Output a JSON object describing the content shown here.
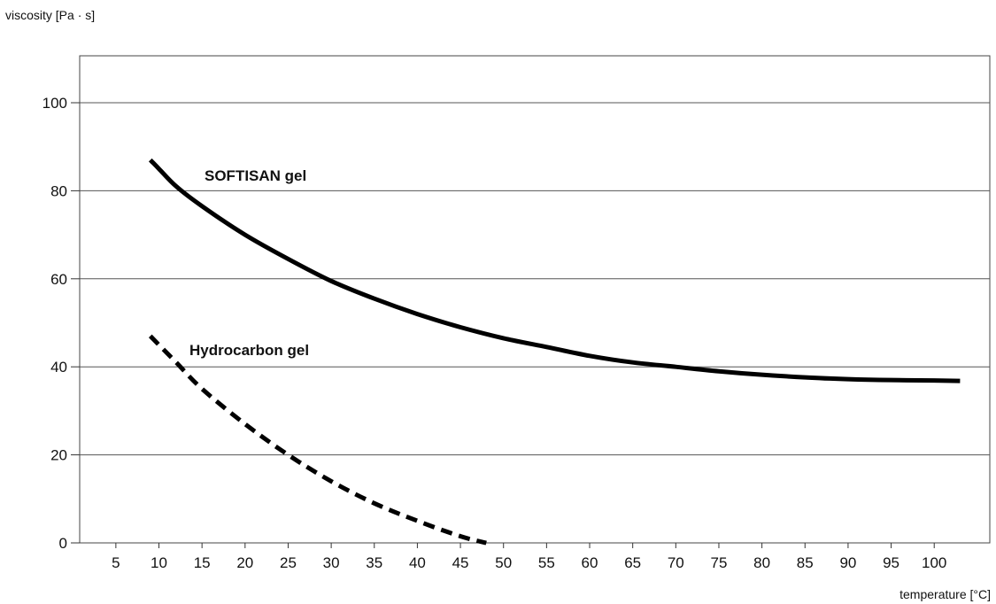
{
  "chart_data": {
    "type": "line",
    "title": "",
    "ylabel": "viscosity [Pa · s]",
    "xlabel": "temperature [°C]",
    "xlim": [
      0,
      105
    ],
    "ylim": [
      0,
      110
    ],
    "x_ticks": [
      5,
      10,
      15,
      20,
      25,
      30,
      35,
      40,
      45,
      50,
      55,
      60,
      65,
      70,
      75,
      80,
      85,
      90,
      95,
      100
    ],
    "y_ticks": [
      0,
      20,
      40,
      60,
      80,
      100
    ],
    "grid": "horizontal",
    "series": [
      {
        "name": "SOFTISAN gel",
        "style": "solid",
        "color": "#000000",
        "x": [
          9,
          10,
          12,
          15,
          20,
          25,
          30,
          35,
          40,
          45,
          50,
          55,
          60,
          65,
          70,
          75,
          80,
          85,
          90,
          95,
          100,
          103
        ],
        "y": [
          87,
          85,
          81,
          76.5,
          70,
          64.5,
          59.5,
          55.5,
          52,
          49,
          46.5,
          44.5,
          42.5,
          41,
          40,
          39,
          38.2,
          37.6,
          37.2,
          37,
          36.9,
          36.8
        ]
      },
      {
        "name": "Hydrocarbon gel",
        "style": "dashed",
        "color": "#000000",
        "x": [
          9,
          10,
          12,
          15,
          20,
          25,
          30,
          35,
          40,
          45,
          48
        ],
        "y": [
          47,
          45,
          41,
          35,
          27,
          20,
          14,
          9,
          5,
          1.5,
          0
        ]
      }
    ]
  }
}
